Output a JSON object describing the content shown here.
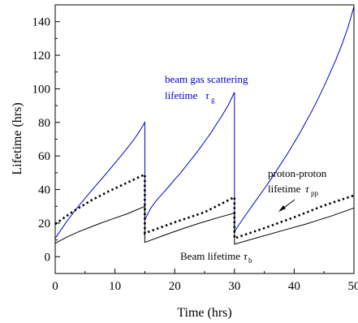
{
  "chart_data": {
    "type": "line",
    "xlabel": "Time (hrs)",
    "ylabel": "Lifetime (hrs)",
    "xlim": [
      0,
      50
    ],
    "ylim": [
      -10,
      150
    ],
    "xticks": [
      "0",
      "10",
      "20",
      "30",
      "40",
      "50"
    ],
    "yticks": [
      "0",
      "20",
      "40",
      "60",
      "80",
      "100",
      "120",
      "140"
    ],
    "grid": false,
    "series": [
      {
        "name": "beam gas scattering lifetime",
        "color": "#0000cc",
        "style": "solid",
        "x": [
          0,
          1,
          2,
          3,
          4,
          5,
          6,
          7,
          8,
          9,
          10,
          11,
          12,
          13,
          14,
          15,
          15,
          16,
          17,
          18,
          19,
          20,
          21,
          22,
          23,
          24,
          25,
          26,
          27,
          28,
          29,
          30,
          30,
          31,
          32,
          33,
          34,
          35,
          36,
          37,
          38,
          39,
          40,
          41,
          42,
          43,
          44,
          45,
          46,
          47,
          48,
          49,
          50
        ],
        "values": [
          11,
          16.2,
          21.3,
          26,
          30.5,
          34.8,
          39,
          43.2,
          47.3,
          51.5,
          55.7,
          60,
          64.4,
          69,
          74,
          80,
          22,
          29,
          33.7,
          37.7,
          41.7,
          46,
          50,
          54.5,
          59,
          63.5,
          68.5,
          73.5,
          79,
          84.5,
          90.5,
          98,
          15,
          20.4,
          25.5,
          30.5,
          35.5,
          40.5,
          45.7,
          51,
          56.5,
          62,
          68,
          74,
          80.5,
          87,
          94,
          101.5,
          109.5,
          117.5,
          126.5,
          136.5,
          149
        ]
      },
      {
        "name": "proton-proton lifetime",
        "color": "#000000",
        "style": "dotted",
        "x": [
          0,
          3,
          6,
          9,
          12,
          15,
          15,
          20,
          25,
          30,
          30,
          35,
          40,
          45,
          50
        ],
        "values": [
          19.5,
          27,
          33.5,
          39,
          44,
          49,
          14,
          20.5,
          26.5,
          35.5,
          11,
          17,
          23.5,
          30.5,
          36.5
        ]
      },
      {
        "name": "Beam lifetime",
        "color": "#000000",
        "style": "solid",
        "x": [
          0,
          2,
          4,
          6,
          8,
          10,
          12,
          15,
          15,
          18,
          21,
          24,
          27,
          30,
          30,
          34,
          38,
          42,
          46,
          50
        ],
        "values": [
          8,
          11.8,
          15,
          17.8,
          20.5,
          23,
          25.5,
          30,
          8.5,
          12.5,
          16.3,
          19.8,
          23,
          26,
          7.5,
          11.5,
          15.5,
          19.5,
          24,
          29
        ]
      }
    ],
    "annotations": [
      {
        "id": "bgs",
        "line1": "beam gas scattering",
        "line2": "lifetime",
        "symbol": "τ",
        "sub": "g",
        "color": "#0000cc"
      },
      {
        "id": "pp",
        "line1": "proton-proton",
        "line2": "lifetime",
        "symbol": "τ",
        "sub": "pp",
        "color": "#000000"
      },
      {
        "id": "beam",
        "line1": "Beam lifetime",
        "symbol": "τ",
        "sub": "b",
        "color": "#000000"
      }
    ]
  }
}
